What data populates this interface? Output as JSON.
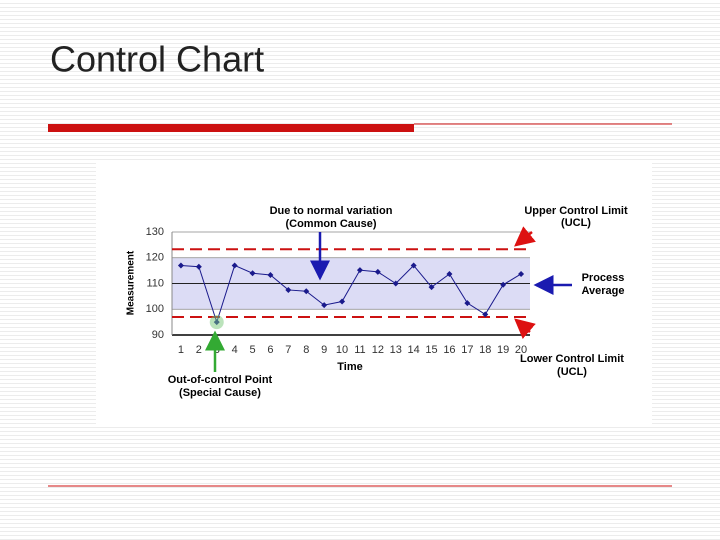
{
  "title": "Control Chart",
  "chart_data": {
    "type": "line",
    "x": [
      1,
      2,
      3,
      4,
      5,
      6,
      7,
      8,
      9,
      10,
      11,
      12,
      13,
      14,
      15,
      16,
      17,
      18,
      19,
      20
    ],
    "series": [
      {
        "color": "#1a1a8c",
        "values": [
          117,
          116.5,
          95,
          117,
          114,
          113.3,
          107.5,
          107,
          101.6,
          103,
          115.2,
          114.5,
          110,
          117,
          108.6,
          113.7,
          102.4,
          98,
          109.5,
          113.7
        ]
      }
    ],
    "xlim": [
      0.5,
      20.5
    ],
    "xticks": [
      1,
      2,
      3,
      4,
      5,
      6,
      7,
      8,
      9,
      10,
      11,
      12,
      13,
      14,
      15,
      16,
      17,
      18,
      19,
      20
    ],
    "ylim": [
      90,
      130
    ],
    "yticks": [
      90,
      100,
      110,
      120,
      130
    ],
    "xlabel": "Time",
    "ylabel": "Measurement",
    "ucl": 123.3,
    "lcl": 97,
    "center": 110,
    "band": [
      100,
      120
    ],
    "limit_color": "#cc1111",
    "band_color": "#dcdcf5",
    "annotations": {
      "common_cause": [
        "Due to normal variation",
        "(Common Cause)"
      ],
      "ucl": [
        "Upper Control Limit",
        "(UCL)"
      ],
      "average": [
        "Process",
        "Average"
      ],
      "lcl": [
        "Lower Control Limit",
        "(UCL)"
      ],
      "special_cause": [
        "Out-of-control Point",
        "(Special Cause)"
      ]
    }
  }
}
